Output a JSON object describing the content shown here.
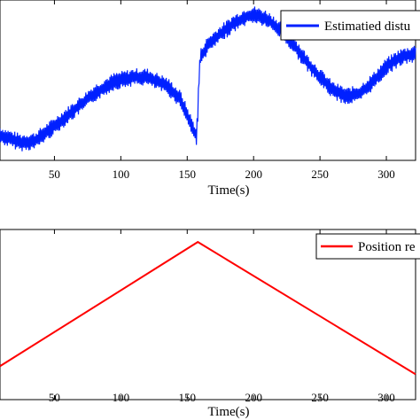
{
  "chart_data": [
    {
      "type": "line",
      "title": "",
      "xlabel": "Time(s)",
      "ylabel": "",
      "xlim": [
        9,
        322
      ],
      "ylim": [
        0,
        1
      ],
      "grid": false,
      "legend": "top-right",
      "xticks": [
        50,
        100,
        150,
        200,
        250,
        300
      ],
      "xtick_labels": [
        "50",
        "100",
        "150",
        "200",
        "250",
        "300"
      ],
      "color": "#0020ff",
      "series": [
        {
          "name": "Estimatied distu",
          "x": [
            9,
            15,
            25,
            35,
            50,
            65,
            80,
            95,
            110,
            120,
            135,
            145,
            155,
            157,
            158,
            159,
            160,
            165,
            175,
            185,
            195,
            200,
            210,
            220,
            230,
            240,
            250,
            260,
            270,
            280,
            290,
            300,
            310,
            322
          ],
          "y": [
            0.14,
            0.12,
            0.09,
            0.1,
            0.2,
            0.31,
            0.42,
            0.5,
            0.53,
            0.53,
            0.47,
            0.38,
            0.17,
            0.13,
            0.3,
            0.56,
            0.66,
            0.74,
            0.82,
            0.89,
            0.94,
            0.95,
            0.92,
            0.85,
            0.75,
            0.63,
            0.53,
            0.44,
            0.4,
            0.42,
            0.5,
            0.6,
            0.66,
            0.69
          ],
          "noise": 0.06
        }
      ]
    },
    {
      "type": "line",
      "title": "",
      "xlabel": "Time(s)",
      "ylabel": "",
      "xlim": [
        9,
        322
      ],
      "ylim": [
        0,
        1
      ],
      "grid": false,
      "legend": "top-right",
      "xticks": [
        50,
        100,
        150,
        200,
        250,
        300
      ],
      "xtick_labels": [
        "50",
        "100",
        "150",
        "200",
        "250",
        "300"
      ],
      "color": "#ff0000",
      "series": [
        {
          "name": "Position re",
          "x": [
            9,
            158,
            322
          ],
          "y": [
            0.18,
            0.95,
            0.13
          ]
        }
      ]
    }
  ]
}
